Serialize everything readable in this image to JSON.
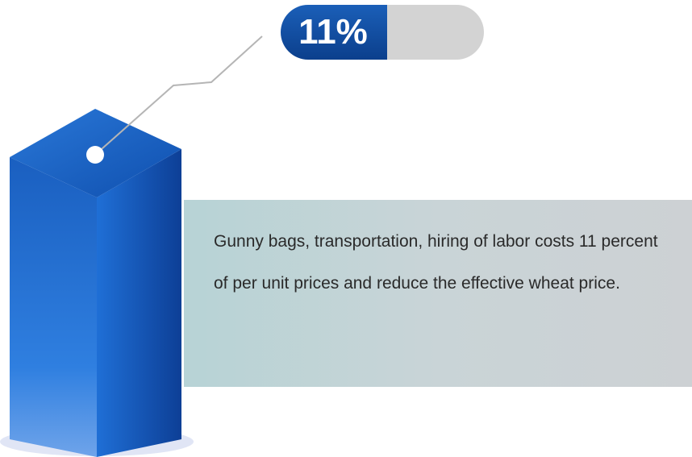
{
  "badge": {
    "label": "11%"
  },
  "description": "Gunny bags, transportation, hiring of labor costs 11 percent of per unit prices and reduce the effective wheat price."
}
